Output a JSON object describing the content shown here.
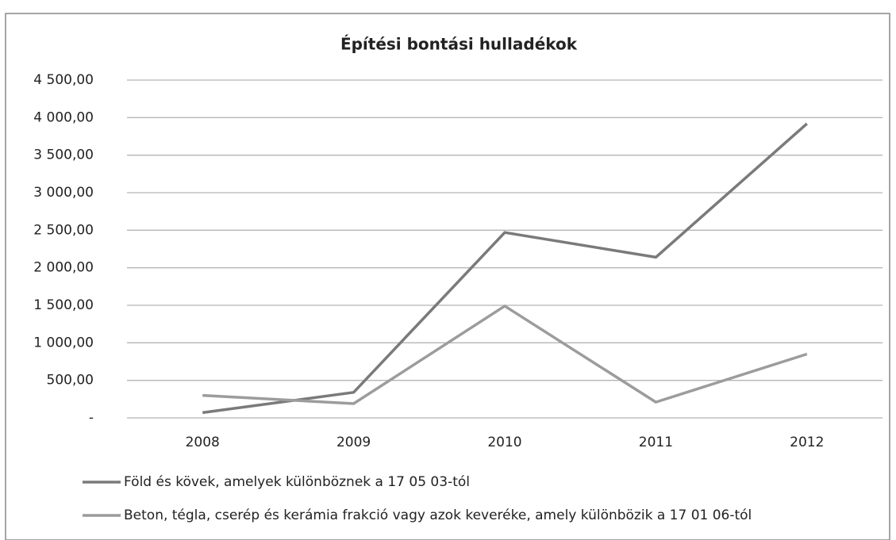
{
  "chart_data": {
    "type": "line",
    "title": "Építési bontási hulladékok",
    "categories": [
      "2008",
      "2009",
      "2010",
      "2011",
      "2012"
    ],
    "series": [
      {
        "name": "Föld és kövek, amelyek különböznek a 17 05 03-tól",
        "color": "#7a7a7a",
        "values": [
          70,
          340,
          2470,
          2140,
          3920
        ]
      },
      {
        "name": "Beton, tégla, cserép és kerámia frakció vagy azok keveréke, amely különbözik a 17 01 06-tól",
        "color": "#9c9c9c",
        "values": [
          300,
          190,
          1490,
          210,
          850
        ]
      }
    ],
    "ylim": [
      0,
      4500
    ],
    "yticks": [
      {
        "value": 0,
        "label": "-"
      },
      {
        "value": 500,
        "label": "500,00"
      },
      {
        "value": 1000,
        "label": "1 000,00"
      },
      {
        "value": 1500,
        "label": "1 500,00"
      },
      {
        "value": 2000,
        "label": "2 000,00"
      },
      {
        "value": 2500,
        "label": "2 500,00"
      },
      {
        "value": 3000,
        "label": "3 000,00"
      },
      {
        "value": 3500,
        "label": "3 500,00"
      },
      {
        "value": 4000,
        "label": "4 000,00"
      },
      {
        "value": 4500,
        "label": "4 500,00"
      }
    ],
    "grid": true,
    "legend": "bottom"
  }
}
